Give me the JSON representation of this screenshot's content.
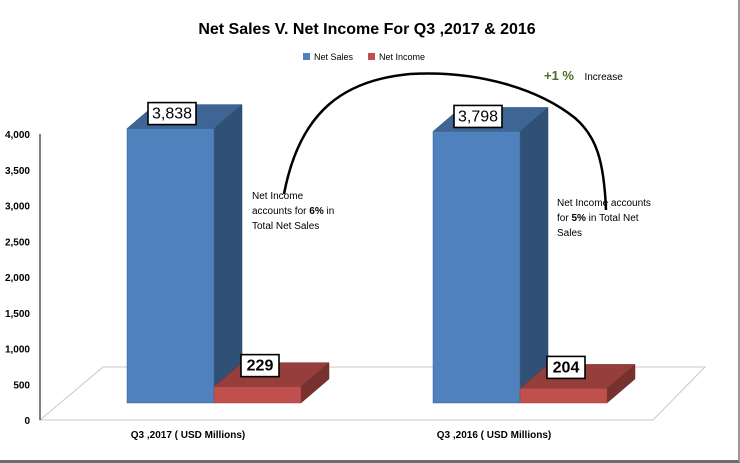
{
  "chart_data": {
    "type": "bar",
    "title": "Net Sales V. Net Income For Q3 ,2017 & 2016",
    "categories": [
      "Q3 ,2017 ( USD Millions)",
      "Q3 ,2016 ( USD Millions)"
    ],
    "series": [
      {
        "name": "Net Sales",
        "values": [
          3838,
          3798
        ],
        "labels": [
          "3,838",
          "3,798"
        ],
        "color": "#4f81bd"
      },
      {
        "name": "Net Income",
        "values": [
          229,
          204
        ],
        "labels": [
          "229",
          "204"
        ],
        "color": "#c0504d"
      }
    ],
    "ylim": [
      0,
      4000
    ],
    "yticks": [
      0,
      500,
      1000,
      1500,
      2000,
      2500,
      3000,
      3500,
      4000
    ],
    "ytick_labels": [
      "0",
      "500",
      "1,000",
      "1,500",
      "2,000",
      "2,500",
      "3,000",
      "3,500",
      "4,000"
    ],
    "legend_position": "top-center",
    "grid": false,
    "annotations": {
      "left_note": {
        "line1": "Net Income",
        "line2_pre": "accounts for ",
        "line2_bold": "6%",
        "line2_post": " in",
        "line3": "Total Net Sales"
      },
      "right_note": {
        "line1": "Net Income accounts",
        "line2_pre": "for ",
        "line2_bold": "5%",
        "line2_post": " in Total Net",
        "line3": "Sales"
      },
      "increase_pct": "+1 %",
      "increase_word": "Increase"
    }
  }
}
